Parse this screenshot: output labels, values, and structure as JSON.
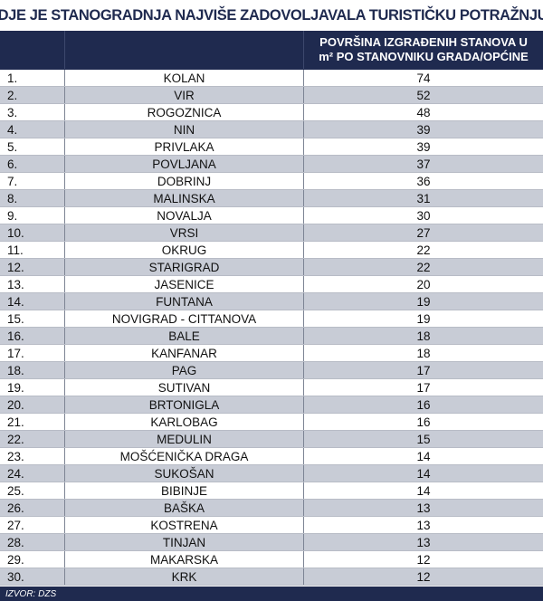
{
  "title": "GDJE JE STANOGRADNJA NAJVIŠE ZADOVOLJAVALA TURISTIČKU POTRAŽNJU?",
  "header": {
    "col1": "",
    "col2": "",
    "col3_line1": "POVRŠINA IZGRAĐENIH STANOVA U",
    "col3_line2": "m² PO STANOVNIKU GRADA/OPĆINE"
  },
  "source": "IZVOR: DZS",
  "colors": {
    "header_bg": "#1f2a4f",
    "row_shade": "#c8ccd6",
    "title": "#1f2a4f"
  },
  "chart_data": {
    "type": "table",
    "title": "GDJE JE STANOGRADNJA NAJVIŠE ZADOVOLJAVALA TURISTIČKU POTRAŽNJU?",
    "value_label": "POVRŠINA IZGRAĐENIH STANOVA U m² PO STANOVNIKU GRADA/OPĆINE",
    "rows": [
      {
        "rank": "1.",
        "place": "KOLAN",
        "value": "74"
      },
      {
        "rank": "2.",
        "place": "VIR",
        "value": "52"
      },
      {
        "rank": "3.",
        "place": "ROGOZNICA",
        "value": "48"
      },
      {
        "rank": "4.",
        "place": "NIN",
        "value": "39"
      },
      {
        "rank": "5.",
        "place": "PRIVLAKA",
        "value": "39"
      },
      {
        "rank": "6.",
        "place": "POVLJANA",
        "value": "37"
      },
      {
        "rank": "7.",
        "place": "DOBRINJ",
        "value": "36"
      },
      {
        "rank": "8.",
        "place": "MALINSKA",
        "value": "31"
      },
      {
        "rank": "9.",
        "place": "NOVALJA",
        "value": "30"
      },
      {
        "rank": "10.",
        "place": "VRSI",
        "value": "27"
      },
      {
        "rank": "11.",
        "place": "OKRUG",
        "value": "22"
      },
      {
        "rank": "12.",
        "place": "STARIGRAD",
        "value": "22"
      },
      {
        "rank": "13.",
        "place": "JASENICE",
        "value": "20"
      },
      {
        "rank": "14.",
        "place": "FUNTANA",
        "value": "19"
      },
      {
        "rank": "15.",
        "place": "NOVIGRAD - CITTANOVA",
        "value": "19"
      },
      {
        "rank": "16.",
        "place": "BALE",
        "value": "18"
      },
      {
        "rank": "17.",
        "place": "KANFANAR",
        "value": "18"
      },
      {
        "rank": "18.",
        "place": "PAG",
        "value": "17"
      },
      {
        "rank": "19.",
        "place": "SUTIVAN",
        "value": "17"
      },
      {
        "rank": "20.",
        "place": "BRTONIGLA",
        "value": "16"
      },
      {
        "rank": "21.",
        "place": "KARLOBAG",
        "value": "16"
      },
      {
        "rank": "22.",
        "place": "MEDULIN",
        "value": "15"
      },
      {
        "rank": "23.",
        "place": "MOŠĆENIČKA DRAGA",
        "value": "14"
      },
      {
        "rank": "24.",
        "place": "SUKOŠAN",
        "value": "14"
      },
      {
        "rank": "25.",
        "place": "BIBINJE",
        "value": "14"
      },
      {
        "rank": "26.",
        "place": "BAŠKA",
        "value": "13"
      },
      {
        "rank": "27.",
        "place": "KOSTRENA",
        "value": "13"
      },
      {
        "rank": "28.",
        "place": "TINJAN",
        "value": "13"
      },
      {
        "rank": "29.",
        "place": "MAKARSKA",
        "value": "12"
      },
      {
        "rank": "30.",
        "place": "KRK",
        "value": "12"
      }
    ]
  }
}
